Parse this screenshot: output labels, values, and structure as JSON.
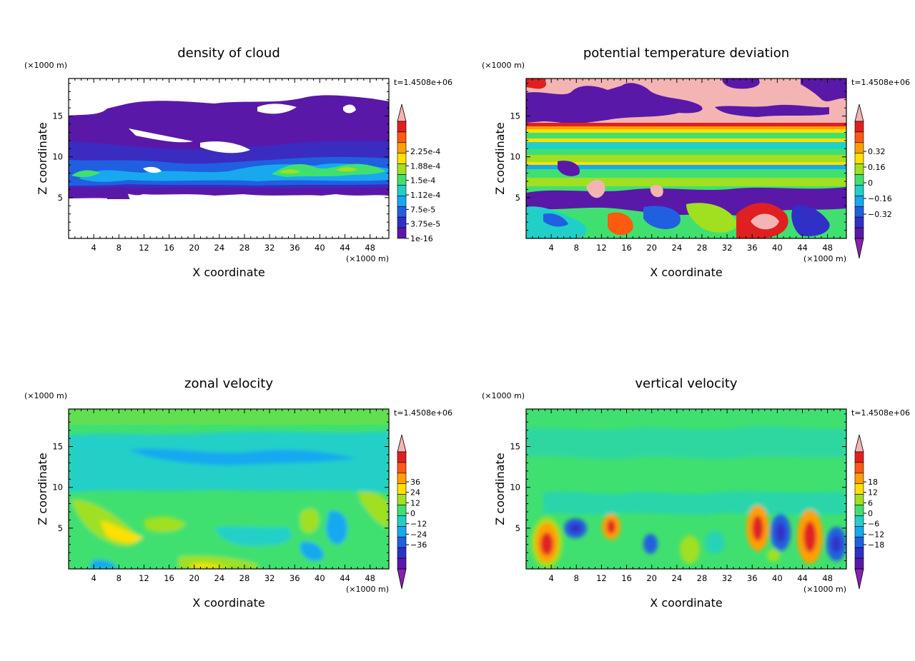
{
  "chart_data": [
    {
      "type": "heatmap",
      "title": "density of cloud",
      "xlabel": "X coordinate",
      "ylabel": "Z coordinate",
      "x_unit": "(×1000 m)",
      "y_unit": "(×1000 m)",
      "time_label": "t=1.4508e+06",
      "xlim": [
        0,
        51
      ],
      "ylim": [
        0,
        19.6
      ],
      "x_ticks": [
        "4",
        "8",
        "12",
        "16",
        "20",
        "24",
        "28",
        "32",
        "36",
        "40",
        "44",
        "48"
      ],
      "y_ticks": [
        "5",
        "10",
        "15"
      ],
      "colorbar": {
        "labels": [
          "1e-16",
          "3.75e-5",
          "7.5e-5",
          "1.12e-4",
          "1.5e-4",
          "1.88e-4",
          "2.25e-4"
        ],
        "colors": [
          "#5a18a8",
          "#3030c8",
          "#2060e0",
          "#18a8f0",
          "#20d0c8",
          "#40e070",
          "#a0e020",
          "#ffe000",
          "#ffa000",
          "#ff5a10",
          "#e02020",
          "#f4b4b4"
        ],
        "top_arrow": true,
        "bottom_arrow": false
      }
    },
    {
      "type": "heatmap",
      "title": "potential temperature deviation",
      "xlabel": "X coordinate",
      "ylabel": "Z coordinate",
      "x_unit": "(×1000 m)",
      "y_unit": "(×1000 m)",
      "time_label": "t=1.4508e+06",
      "xlim": [
        0,
        51
      ],
      "ylim": [
        0,
        19.6
      ],
      "x_ticks": [
        "4",
        "8",
        "12",
        "16",
        "20",
        "24",
        "28",
        "32",
        "36",
        "40",
        "44",
        "48"
      ],
      "y_ticks": [
        "5",
        "10",
        "15"
      ],
      "colorbar": {
        "labels": [
          "-0.32",
          "-0.16",
          "0",
          "0.16",
          "0.32"
        ],
        "colors": [
          "#5a18a8",
          "#3030c8",
          "#2060e0",
          "#18a8f0",
          "#20d0c8",
          "#40e070",
          "#a0e020",
          "#ffe000",
          "#ffa000",
          "#ff5a10",
          "#e02020",
          "#f4b4b4"
        ],
        "top_arrow": true,
        "bottom_arrow": true
      }
    },
    {
      "type": "heatmap",
      "title": "zonal velocity",
      "xlabel": "X coordinate",
      "ylabel": "Z coordinate",
      "x_unit": "(×1000 m)",
      "y_unit": "(×1000 m)",
      "time_label": "t=1.4508e+06",
      "xlim": [
        0,
        51
      ],
      "ylim": [
        0,
        19.6
      ],
      "x_ticks": [
        "4",
        "8",
        "12",
        "16",
        "20",
        "24",
        "28",
        "32",
        "36",
        "40",
        "44",
        "48"
      ],
      "y_ticks": [
        "5",
        "10",
        "15"
      ],
      "colorbar": {
        "labels": [
          "-36",
          "-24",
          "-12",
          "0",
          "12",
          "24",
          "36"
        ],
        "colors": [
          "#5a18a8",
          "#3030c8",
          "#2060e0",
          "#18a8f0",
          "#20d0c8",
          "#40e070",
          "#a0e020",
          "#ffe000",
          "#ffa000",
          "#ff5a10",
          "#e02020",
          "#f4b4b4"
        ],
        "top_arrow": true,
        "bottom_arrow": true
      }
    },
    {
      "type": "heatmap",
      "title": "vertical velocity",
      "xlabel": "X coordinate",
      "ylabel": "Z coordinate",
      "x_unit": "(×1000 m)",
      "y_unit": "(×1000 m)",
      "time_label": "t=1.4508e+06",
      "xlim": [
        0,
        51
      ],
      "ylim": [
        0,
        19.6
      ],
      "x_ticks": [
        "4",
        "8",
        "12",
        "16",
        "20",
        "24",
        "28",
        "32",
        "36",
        "40",
        "44",
        "48"
      ],
      "y_ticks": [
        "5",
        "10",
        "15"
      ],
      "colorbar": {
        "labels": [
          "-18",
          "-12",
          "-6",
          "0",
          "6",
          "12",
          "18"
        ],
        "colors": [
          "#5a18a8",
          "#3030c8",
          "#2060e0",
          "#18a8f0",
          "#20d0c8",
          "#40e070",
          "#a0e020",
          "#ffe000",
          "#ffa000",
          "#ff5a10",
          "#e02020",
          "#f4b4b4"
        ],
        "top_arrow": true,
        "bottom_arrow": true
      }
    }
  ]
}
